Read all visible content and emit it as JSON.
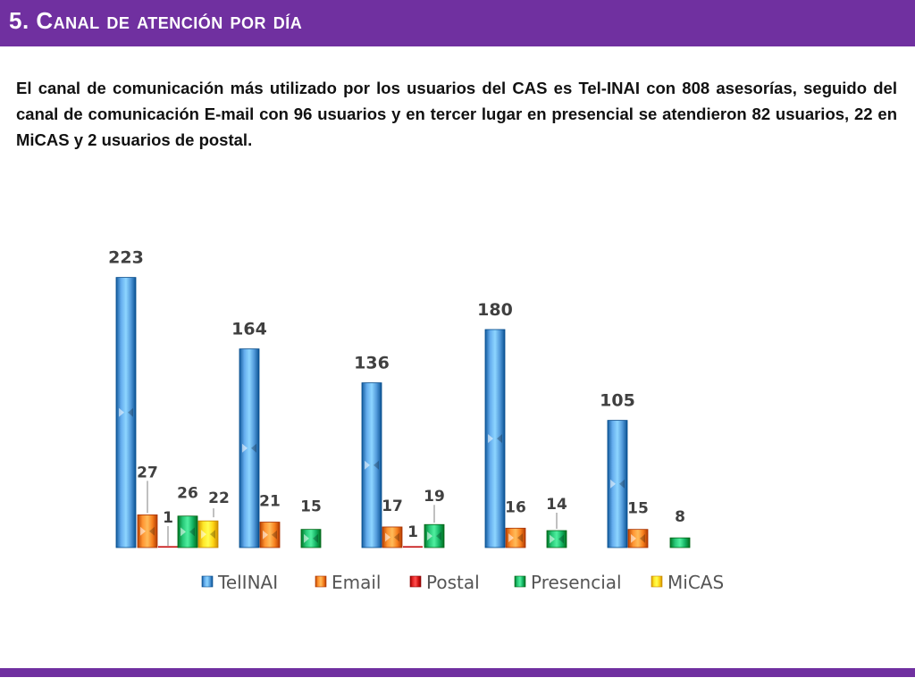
{
  "slide": {
    "title": "5. Canal de atención por día",
    "paragraph": "El canal de comunicación más utilizado por los usuarios del CAS es Tel-INAI con 808 asesorías, seguido del canal de comunicación E-mail con 96 usuarios y en tercer lugar en presencial se atendieron 82 usuarios, 22 en MiCAS  y 2 usuarios de postal."
  },
  "colors": {
    "accent": "#7030a0",
    "TelINAI": "#3d85c6",
    "Email": "#e36c0a",
    "Postal": "#c00000",
    "Presencial": "#00a050",
    "MiCAS": "#ffc000"
  },
  "chart_data": {
    "type": "bar",
    "title": "",
    "xlabel": "",
    "ylabel": "",
    "ylim": [
      0,
      240
    ],
    "grid": false,
    "legend_position": "bottom",
    "categories": [
      "",
      "",
      "",
      "",
      ""
    ],
    "series": [
      {
        "name": "TelINAI",
        "values": [
          223,
          164,
          136,
          180,
          105
        ]
      },
      {
        "name": "Email",
        "values": [
          27,
          21,
          17,
          16,
          15
        ]
      },
      {
        "name": "Postal",
        "values": [
          1,
          null,
          1,
          null,
          null
        ]
      },
      {
        "name": "Presencial",
        "values": [
          26,
          15,
          19,
          14,
          8
        ]
      },
      {
        "name": "MiCAS",
        "values": [
          22,
          null,
          null,
          null,
          null
        ]
      }
    ]
  }
}
